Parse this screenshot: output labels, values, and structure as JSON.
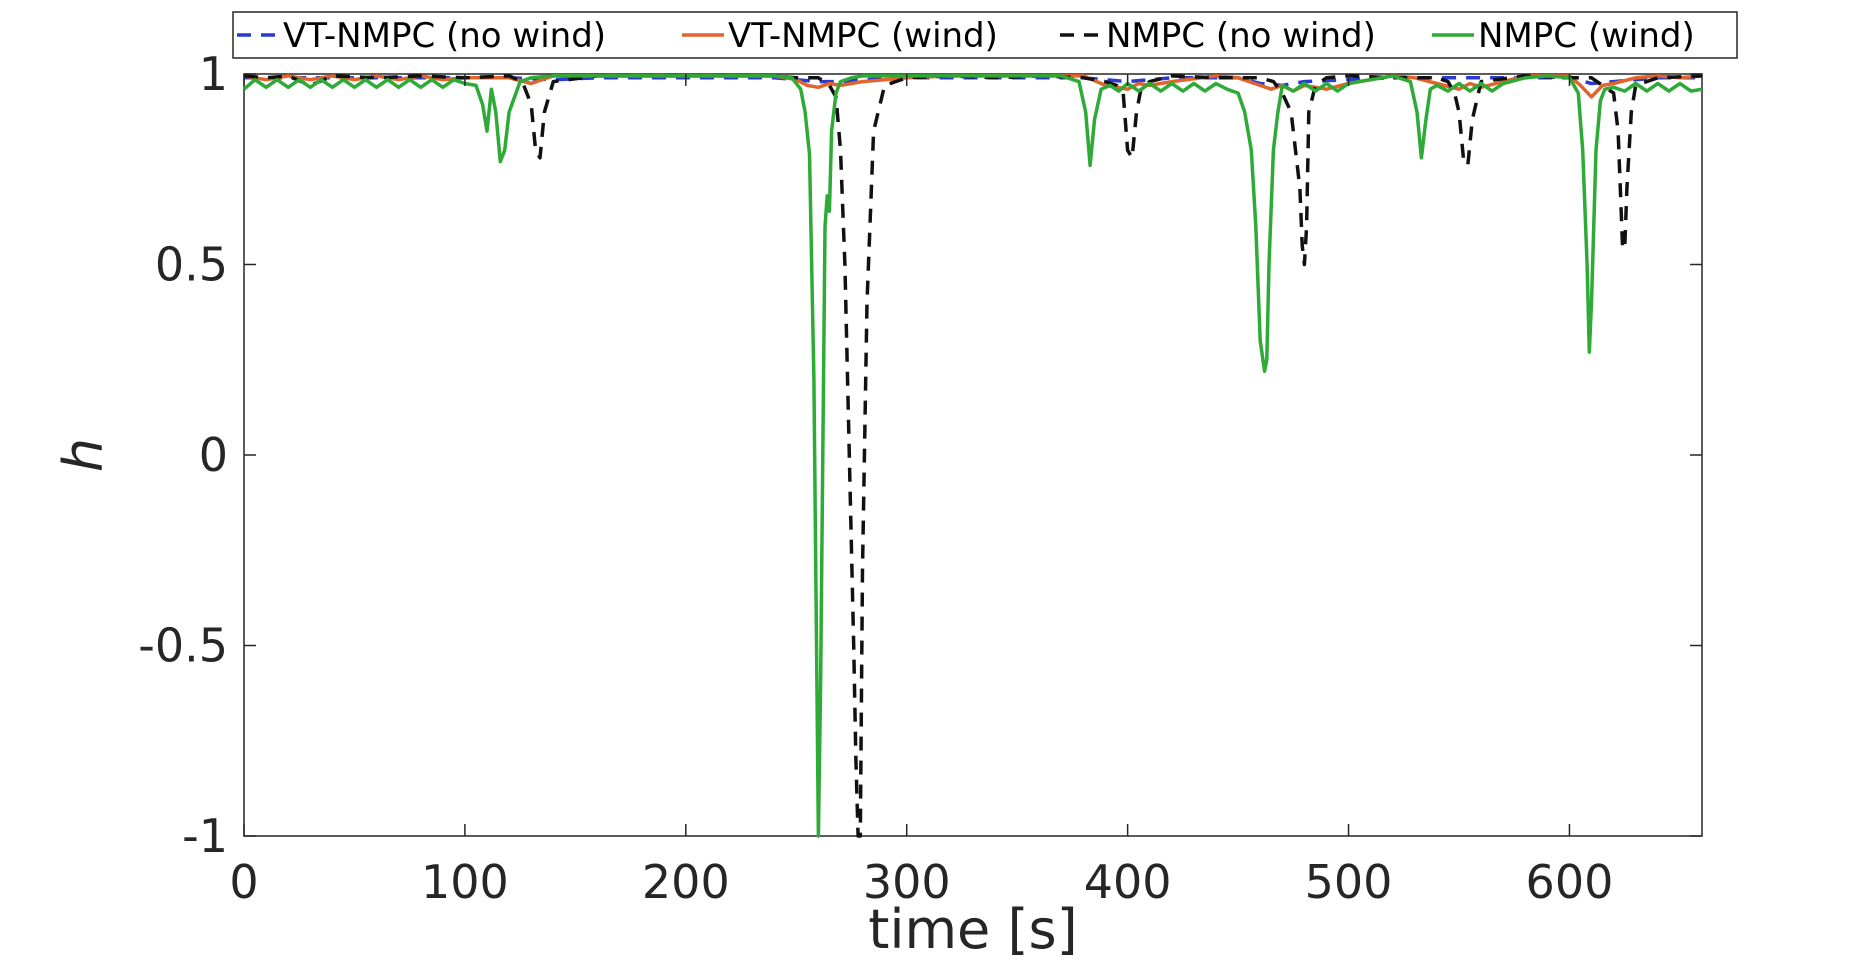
{
  "chart_data": {
    "type": "line",
    "xlabel": "time [s]",
    "ylabel": "h",
    "xlim": [
      0,
      660
    ],
    "ylim": [
      -1,
      1
    ],
    "xticks": [
      0,
      100,
      200,
      300,
      400,
      500,
      600
    ],
    "yticks": [
      -1,
      -0.5,
      0,
      0.5,
      1
    ],
    "ytick_labels": [
      "-1",
      "-0.5",
      "0",
      "0.5",
      "1"
    ],
    "grid": false,
    "legend_position": "top",
    "series": [
      {
        "name": "VT-NMPC (no wind)",
        "color": "#2a3bd1",
        "dash": "dashed",
        "x": [
          0,
          20,
          40,
          60,
          80,
          100,
          120,
          140,
          160,
          180,
          200,
          220,
          240,
          250,
          260,
          270,
          280,
          300,
          330,
          360,
          380,
          400,
          420,
          440,
          450,
          460,
          470,
          480,
          500,
          520,
          540,
          560,
          580,
          600,
          610,
          620,
          640,
          660
        ],
        "y": [
          0.99,
          0.99,
          0.99,
          0.99,
          0.99,
          0.99,
          0.99,
          0.985,
          0.99,
          0.99,
          0.99,
          0.99,
          0.99,
          0.985,
          0.98,
          0.98,
          0.985,
          0.99,
          0.99,
          0.99,
          0.99,
          0.98,
          0.99,
          0.99,
          0.99,
          0.975,
          0.97,
          0.98,
          0.985,
          0.99,
          0.99,
          0.99,
          0.99,
          0.99,
          0.975,
          0.98,
          0.99,
          0.99
        ]
      },
      {
        "name": "VT-NMPC (wind)",
        "color": "#e0642b",
        "dash": "solid",
        "x": [
          0,
          10,
          20,
          30,
          40,
          50,
          60,
          70,
          80,
          90,
          100,
          110,
          120,
          130,
          140,
          160,
          180,
          200,
          220,
          240,
          250,
          255,
          260,
          265,
          270,
          275,
          280,
          300,
          320,
          340,
          360,
          380,
          390,
          400,
          405,
          410,
          420,
          440,
          450,
          460,
          465,
          470,
          475,
          480,
          490,
          500,
          520,
          530,
          540,
          550,
          555,
          560,
          580,
          600,
          605,
          610,
          615,
          620,
          630,
          640,
          650,
          660
        ],
        "y": [
          0.995,
          0.985,
          0.995,
          0.985,
          0.995,
          0.985,
          0.995,
          0.985,
          0.995,
          0.985,
          0.99,
          0.99,
          0.99,
          0.975,
          0.995,
          0.995,
          0.995,
          0.995,
          0.995,
          0.995,
          0.985,
          0.97,
          0.965,
          0.975,
          0.97,
          0.975,
          0.98,
          0.99,
          0.995,
          0.995,
          0.995,
          0.995,
          0.97,
          0.96,
          0.975,
          0.97,
          0.98,
          0.995,
          0.99,
          0.97,
          0.96,
          0.97,
          0.955,
          0.97,
          0.96,
          0.975,
          0.995,
          0.99,
          0.975,
          0.96,
          0.975,
          0.965,
          0.995,
          0.995,
          0.97,
          0.94,
          0.97,
          0.975,
          0.99,
          0.995,
          0.99,
          0.995
        ]
      },
      {
        "name": "NMPC (no wind)",
        "color": "#111111",
        "dash": "dashed",
        "x": [
          0,
          10,
          20,
          30,
          40,
          60,
          80,
          100,
          120,
          126,
          128,
          130,
          132,
          134,
          136,
          140,
          160,
          200,
          240,
          250,
          260,
          265,
          268,
          270,
          272,
          274,
          276,
          277,
          278,
          279,
          280,
          282,
          285,
          290,
          300,
          320,
          340,
          360,
          380,
          390,
          395,
          398,
          400,
          402,
          404,
          406,
          410,
          420,
          440,
          460,
          466,
          470,
          474,
          476,
          478,
          479,
          480,
          481,
          482,
          485,
          490,
          500,
          520,
          540,
          545,
          548,
          550,
          552,
          554,
          556,
          560,
          580,
          600,
          610,
          615,
          620,
          622,
          623,
          624,
          625,
          626,
          628,
          630,
          640,
          660
        ],
        "y": [
          0.995,
          0.99,
          0.995,
          0.97,
          0.995,
          0.99,
          0.995,
          0.99,
          0.995,
          0.98,
          0.95,
          0.92,
          0.8,
          0.78,
          0.9,
          0.98,
          0.995,
          0.995,
          0.995,
          0.99,
          0.99,
          0.97,
          0.94,
          0.8,
          0.5,
          0.0,
          -0.5,
          -0.8,
          -1.0,
          -1.0,
          -0.3,
          0.4,
          0.85,
          0.97,
          0.99,
          0.995,
          0.99,
          0.995,
          0.99,
          0.98,
          0.97,
          0.95,
          0.8,
          0.78,
          0.9,
          0.96,
          0.98,
          0.995,
          0.99,
          0.99,
          0.98,
          0.95,
          0.9,
          0.8,
          0.7,
          0.55,
          0.5,
          0.6,
          0.9,
          0.97,
          0.99,
          0.995,
          0.99,
          0.99,
          0.98,
          0.95,
          0.9,
          0.78,
          0.76,
          0.88,
          0.98,
          0.995,
          0.99,
          0.99,
          0.97,
          0.95,
          0.85,
          0.7,
          0.55,
          0.54,
          0.7,
          0.9,
          0.97,
          0.99,
          0.995
        ]
      },
      {
        "name": "NMPC (wind)",
        "color": "#2eaa37",
        "dash": "solid",
        "x": [
          0,
          5,
          10,
          15,
          20,
          25,
          30,
          35,
          40,
          45,
          50,
          55,
          60,
          65,
          70,
          75,
          80,
          85,
          90,
          95,
          100,
          105,
          108,
          110,
          112,
          114,
          116,
          118,
          120,
          125,
          130,
          140,
          160,
          200,
          240,
          248,
          252,
          254,
          256,
          258,
          260,
          261,
          262,
          263,
          264,
          265,
          266,
          268,
          270,
          275,
          280,
          300,
          340,
          370,
          378,
          381,
          383,
          385,
          388,
          392,
          396,
          400,
          405,
          410,
          415,
          420,
          425,
          430,
          435,
          440,
          445,
          450,
          453,
          456,
          458,
          460,
          462,
          463,
          464,
          466,
          468,
          470,
          475,
          480,
          485,
          490,
          495,
          500,
          510,
          520,
          528,
          531,
          533,
          535,
          537,
          540,
          545,
          550,
          555,
          560,
          565,
          570,
          580,
          590,
          600,
          604,
          606,
          608,
          609,
          610,
          612,
          614,
          616,
          620,
          625,
          630,
          635,
          640,
          645,
          650,
          655,
          660
        ],
        "y": [
          0.96,
          0.985,
          0.965,
          0.985,
          0.965,
          0.985,
          0.965,
          0.985,
          0.965,
          0.985,
          0.965,
          0.985,
          0.965,
          0.985,
          0.965,
          0.985,
          0.965,
          0.985,
          0.965,
          0.985,
          0.975,
          0.97,
          0.92,
          0.85,
          0.96,
          0.9,
          0.77,
          0.8,
          0.9,
          0.98,
          0.99,
          0.995,
          0.995,
          0.995,
          0.995,
          0.99,
          0.96,
          0.9,
          0.79,
          0.2,
          -1.0,
          -0.6,
          0.0,
          0.6,
          0.68,
          0.64,
          0.85,
          0.95,
          0.98,
          0.99,
          0.995,
          0.995,
          0.995,
          0.995,
          0.98,
          0.9,
          0.76,
          0.88,
          0.96,
          0.97,
          0.955,
          0.975,
          0.955,
          0.975,
          0.955,
          0.975,
          0.955,
          0.975,
          0.955,
          0.975,
          0.96,
          0.95,
          0.9,
          0.8,
          0.6,
          0.3,
          0.22,
          0.25,
          0.5,
          0.8,
          0.9,
          0.97,
          0.955,
          0.975,
          0.955,
          0.975,
          0.955,
          0.975,
          0.985,
          0.995,
          0.98,
          0.9,
          0.78,
          0.88,
          0.96,
          0.97,
          0.955,
          0.975,
          0.955,
          0.975,
          0.955,
          0.975,
          0.99,
          0.995,
          0.99,
          0.95,
          0.8,
          0.5,
          0.27,
          0.4,
          0.8,
          0.93,
          0.96,
          0.965,
          0.955,
          0.975,
          0.955,
          0.975,
          0.955,
          0.975,
          0.955,
          0.96
        ]
      }
    ]
  }
}
